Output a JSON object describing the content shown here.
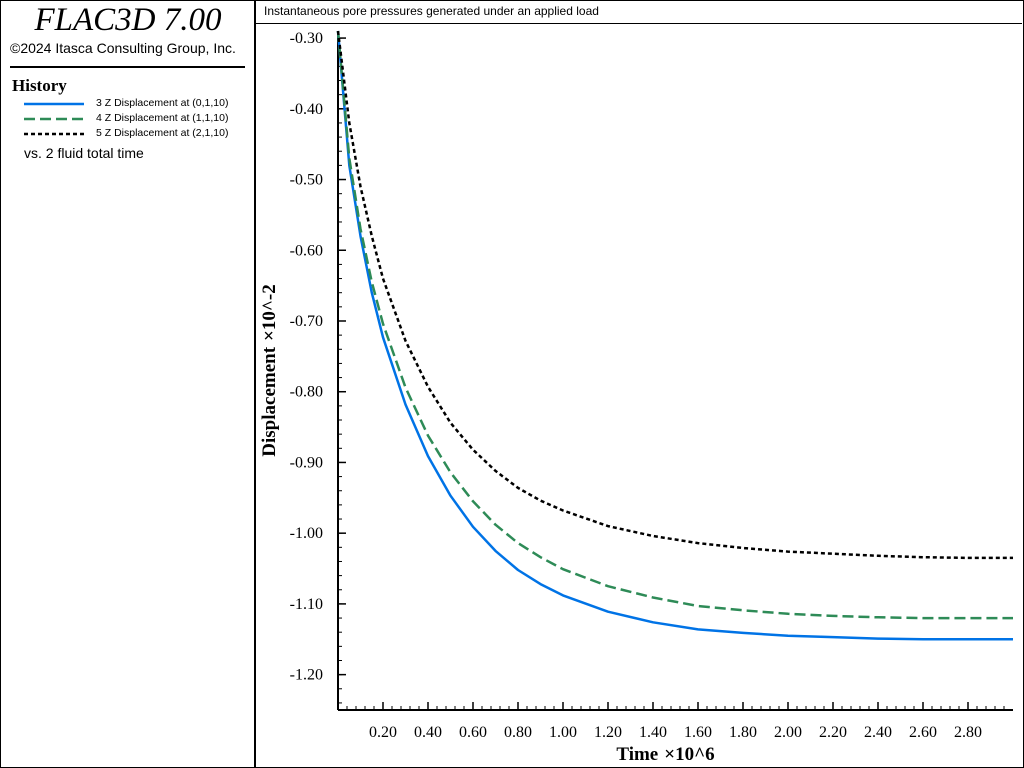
{
  "app": {
    "title": "FLAC3D 7.00",
    "copyright": "©2024 Itasca Consulting Group, Inc."
  },
  "history": {
    "heading": "History",
    "vs_label": "vs. 2 fluid total time"
  },
  "chart_data": {
    "type": "line",
    "title": "Instantaneous pore pressures generated under an applied load",
    "xlabel": "Time",
    "xlabel_scale": "×10^6",
    "ylabel": "Displacement",
    "ylabel_scale": "×10^-2",
    "xlim": [
      0.0,
      3.0
    ],
    "ylim": [
      -1.25,
      -0.29
    ],
    "x_ticks": [
      0.2,
      0.4,
      0.6,
      0.8,
      1.0,
      1.2,
      1.4,
      1.6,
      1.8,
      2.0,
      2.2,
      2.4,
      2.6,
      2.8
    ],
    "x_tick_labels": [
      "0.20",
      "0.40",
      "0.60",
      "0.80",
      "1.00",
      "1.20",
      "1.40",
      "1.60",
      "1.80",
      "2.00",
      "2.20",
      "2.40",
      "2.60",
      "2.80"
    ],
    "y_ticks": [
      -0.3,
      -0.4,
      -0.5,
      -0.6,
      -0.7,
      -0.8,
      -0.9,
      -1.0,
      -1.1,
      -1.2
    ],
    "y_tick_labels": [
      "-0.30",
      "-0.40",
      "-0.50",
      "-0.60",
      "-0.70",
      "-0.80",
      "-0.90",
      "-1.00",
      "-1.10",
      "-1.20"
    ],
    "legend_position": "left-panel",
    "series": [
      {
        "name": "3 Z Displacement at (0,1,10)",
        "color": "#0073e6",
        "style": "solid",
        "x": [
          0.0,
          0.05,
          0.1,
          0.15,
          0.2,
          0.3,
          0.4,
          0.5,
          0.6,
          0.7,
          0.8,
          0.9,
          1.0,
          1.2,
          1.4,
          1.6,
          1.8,
          2.0,
          2.2,
          2.4,
          2.6,
          2.8,
          3.0
        ],
        "y": [
          -0.29,
          -0.48,
          -0.58,
          -0.66,
          -0.723,
          -0.818,
          -0.891,
          -0.947,
          -0.991,
          -1.025,
          -1.052,
          -1.072,
          -1.088,
          -1.111,
          -1.126,
          -1.136,
          -1.141,
          -1.145,
          -1.147,
          -1.149,
          -1.15,
          -1.15,
          -1.15
        ]
      },
      {
        "name": "4 Z Displacement at (1,1,10)",
        "color": "#2e8b57",
        "style": "dashed",
        "x": [
          0.0,
          0.05,
          0.1,
          0.15,
          0.2,
          0.3,
          0.4,
          0.5,
          0.6,
          0.7,
          0.8,
          0.9,
          1.0,
          1.2,
          1.4,
          1.6,
          1.8,
          2.0,
          2.2,
          2.4,
          2.6,
          2.8,
          3.0
        ],
        "y": [
          -0.29,
          -0.47,
          -0.57,
          -0.645,
          -0.704,
          -0.794,
          -0.862,
          -0.914,
          -0.955,
          -0.988,
          -1.014,
          -1.034,
          -1.051,
          -1.075,
          -1.091,
          -1.103,
          -1.109,
          -1.114,
          -1.117,
          -1.119,
          -1.12,
          -1.12,
          -1.12
        ]
      },
      {
        "name": "5 Z Displacement at (2,1,10)",
        "color": "#000000",
        "style": "dotted",
        "x": [
          0.0,
          0.05,
          0.1,
          0.15,
          0.2,
          0.3,
          0.4,
          0.5,
          0.6,
          0.7,
          0.8,
          0.9,
          1.0,
          1.2,
          1.4,
          1.6,
          1.8,
          2.0,
          2.2,
          2.4,
          2.6,
          2.8,
          3.0
        ],
        "y": [
          -0.29,
          -0.42,
          -0.51,
          -0.58,
          -0.64,
          -0.728,
          -0.793,
          -0.844,
          -0.882,
          -0.912,
          -0.936,
          -0.954,
          -0.968,
          -0.99,
          -1.004,
          -1.014,
          -1.021,
          -1.026,
          -1.029,
          -1.032,
          -1.034,
          -1.035,
          -1.035
        ]
      }
    ]
  }
}
